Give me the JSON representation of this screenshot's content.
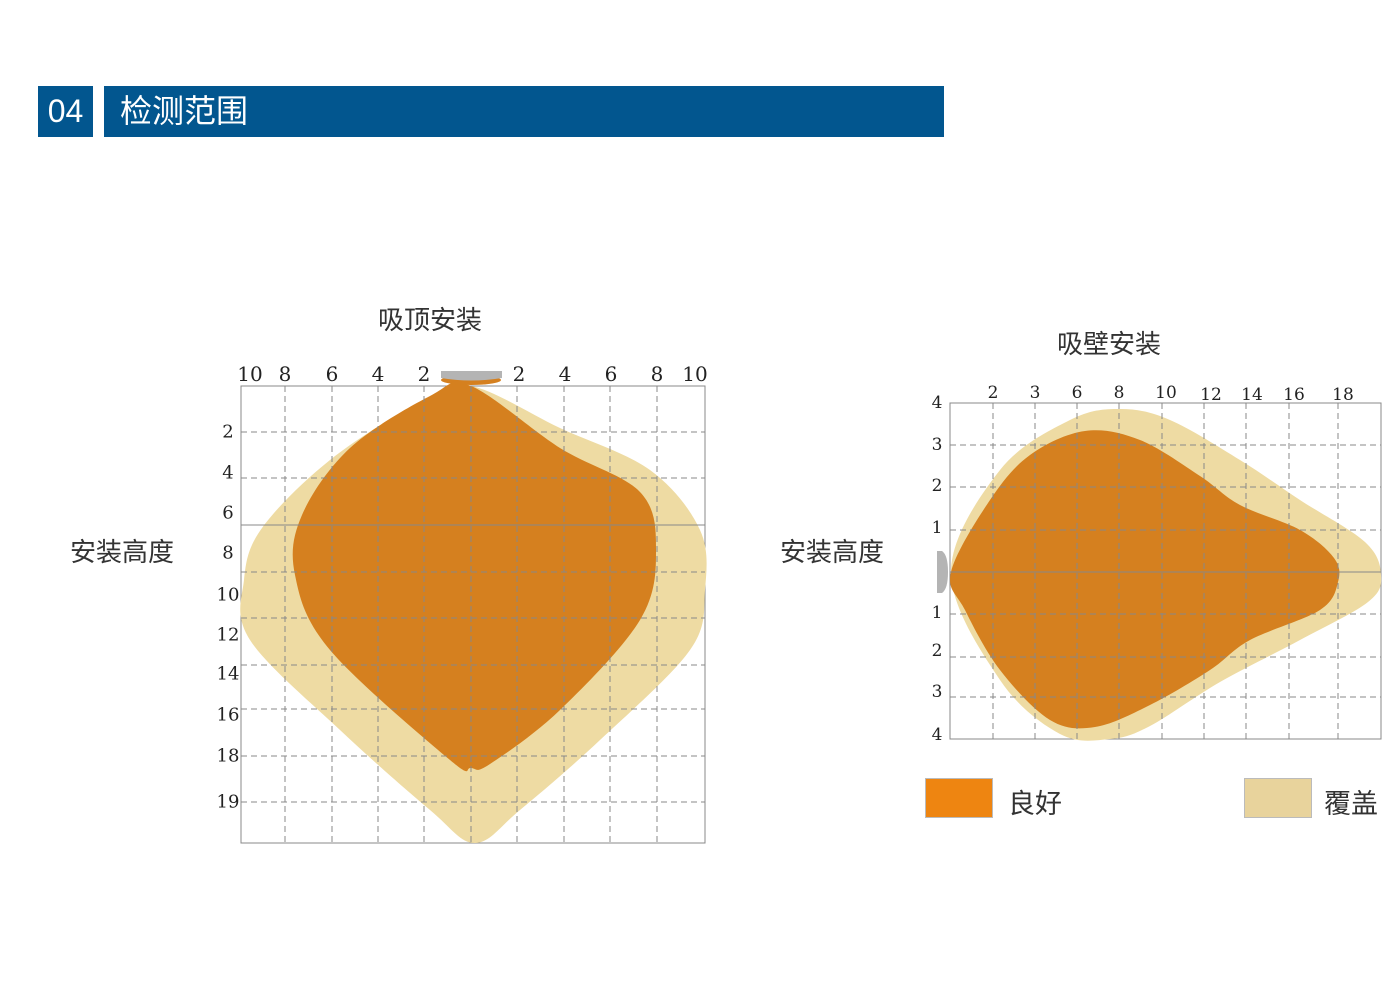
{
  "header": {
    "number": "04",
    "title": "检测范围"
  },
  "ceiling": {
    "title": "吸顶安装",
    "side_label": "安装高度",
    "top_ticks": [
      "10",
      "8",
      "6",
      "4",
      "2",
      "2",
      "4",
      "6",
      "8",
      "10"
    ],
    "left_ticks": [
      "2",
      "4",
      "6",
      "8",
      "10",
      "12",
      "14",
      "16",
      "18",
      "19"
    ]
  },
  "wall": {
    "title": "吸壁安装",
    "side_label": "安装高度",
    "top_ticks": [
      "2",
      "3",
      "6",
      "8",
      "10",
      "12",
      "14",
      "16",
      "18"
    ],
    "left_ticks": [
      "4",
      "3",
      "2",
      "1",
      "1",
      "2",
      "3",
      "4"
    ]
  },
  "legend": [
    {
      "label": "良好",
      "color": "#ee8511"
    },
    {
      "label": "覆盖",
      "color": "#e8d39c"
    }
  ],
  "colors": {
    "header": "#02568f",
    "good": "#d5801f",
    "coverage": "#eedba3",
    "sensor": "#b4b4b4"
  }
}
